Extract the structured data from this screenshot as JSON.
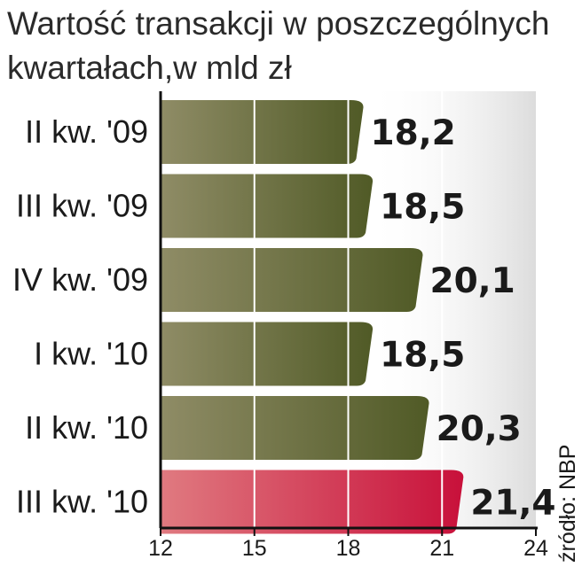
{
  "title": "Wartość transakcji w poszczególnych kwartałach,w mld zł",
  "source": "źródło: NBP",
  "colors": {
    "bar_dark": "#505a26",
    "bar_light": "#8f8c66",
    "highlight_dark": "#c8103a",
    "highlight_light": "#e07a80",
    "highlight_text": "#c8103a",
    "text": "#1a1a1a"
  },
  "chart_data": {
    "type": "bar",
    "orientation": "horizontal",
    "title": "Wartość transakcji w poszczególnych kwartałach,w mld zł",
    "categories": [
      "II kw. '09",
      "III kw. '09",
      "IV kw. '09",
      "I kw. '10",
      "II kw. '10",
      "III kw. '10"
    ],
    "values": [
      18.2,
      18.5,
      20.1,
      18.5,
      20.3,
      21.4
    ],
    "value_labels": [
      "18,2",
      "18,5",
      "20,1",
      "18,5",
      "20,3",
      "21,4"
    ],
    "highlight_index": 5,
    "xlim": [
      12,
      24
    ],
    "xticks": [
      12,
      15,
      18,
      21,
      24
    ],
    "grid": true,
    "legend": "none"
  }
}
